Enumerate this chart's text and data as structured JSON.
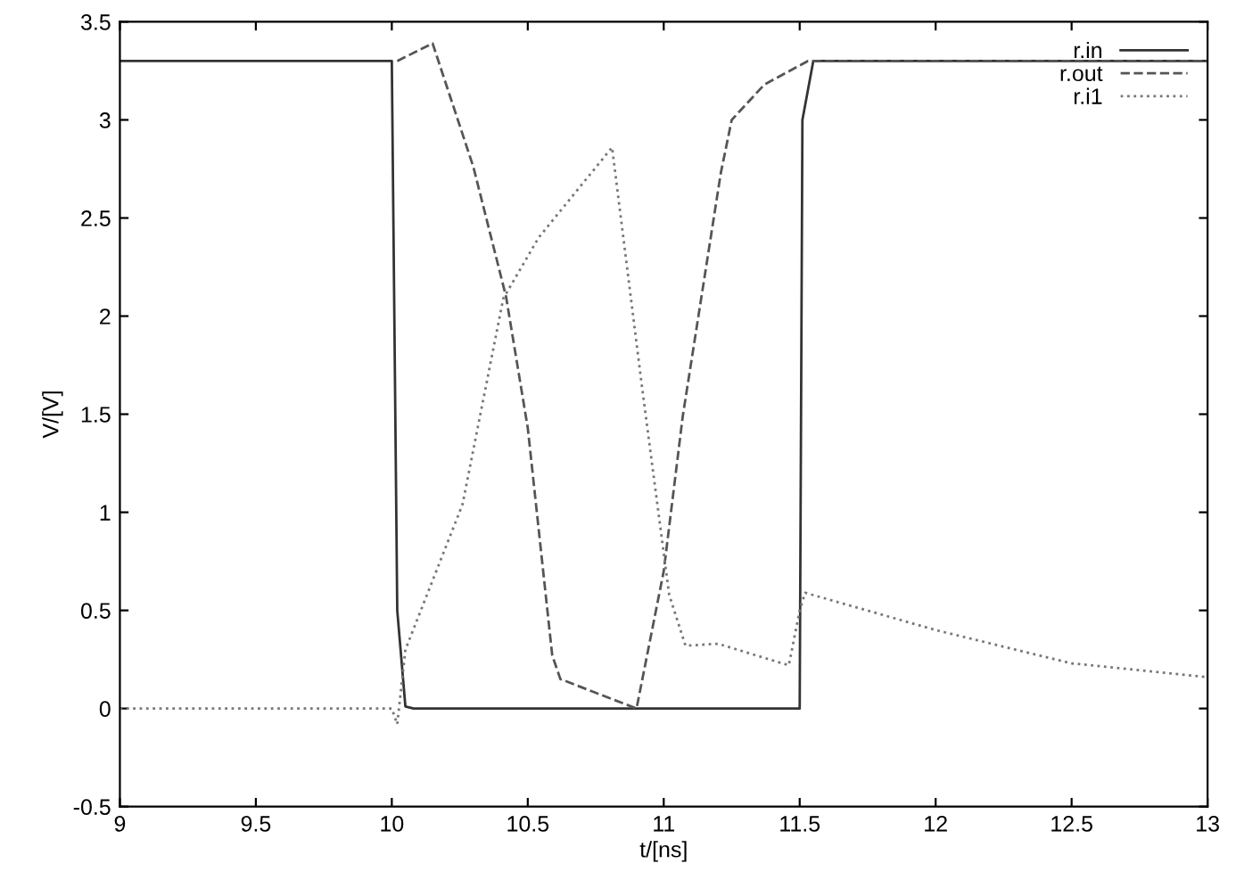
{
  "chart_data": {
    "type": "line",
    "xlabel": "t/[ns]",
    "ylabel": "V/[V]",
    "xlim": [
      9,
      13
    ],
    "xticks": [
      9,
      9.5,
      10,
      10.5,
      11,
      11.5,
      12,
      12.5,
      13
    ],
    "ylim": [
      -0.5,
      3.5
    ],
    "yticks": [
      -0.5,
      0,
      0.5,
      1,
      1.5,
      2,
      2.5,
      3,
      3.5
    ],
    "grid": false,
    "legend": "top right",
    "series": [
      {
        "name": "r.in",
        "color": "#333333",
        "line_style": "solid",
        "x": [
          9,
          10,
          10.02,
          10.05,
          10.08,
          11.5,
          11.51,
          11.55,
          13
        ],
        "values": [
          3.3,
          3.3,
          0.5,
          0.01,
          0,
          0,
          3.0,
          3.3,
          3.3
        ]
      },
      {
        "name": "r.out",
        "color": "#555555",
        "line_style": "dashed",
        "x": [
          10.02,
          10.15,
          10.3,
          10.42,
          10.5,
          10.59,
          10.62,
          10.75,
          10.9,
          11.0,
          11.07,
          11.21,
          11.25,
          11.37,
          11.53,
          13
        ],
        "values": [
          3.3,
          3.39,
          2.76,
          2.1,
          1.43,
          0.27,
          0.15,
          0.08,
          0,
          0.7,
          1.49,
          2.73,
          3.0,
          3.18,
          3.3,
          3.3
        ]
      },
      {
        "name": "r.i1",
        "color": "#777777",
        "line_style": "dotted",
        "x": [
          9,
          10.0,
          10.02,
          10.05,
          10.26,
          10.41,
          10.54,
          10.81,
          10.92,
          11.02,
          11.08,
          11.2,
          11.46,
          11.5,
          11.52,
          12.0,
          12.5,
          13
        ],
        "values": [
          0,
          0,
          -0.08,
          0.3,
          1.04,
          2.09,
          2.4,
          2.86,
          1.64,
          0.58,
          0.32,
          0.33,
          0.22,
          0.5,
          0.59,
          0.4,
          0.23,
          0.16
        ]
      }
    ]
  }
}
